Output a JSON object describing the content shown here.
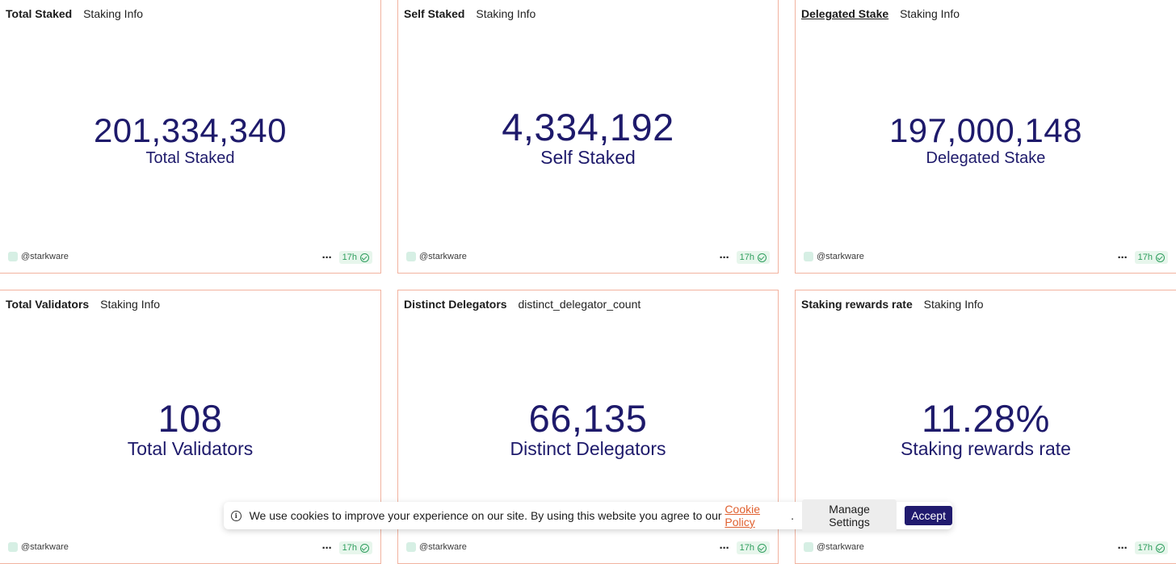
{
  "cards": [
    {
      "title": "Total Staked",
      "subtitle": "Staking Info",
      "value": "201,334,340",
      "label": "Total Staked",
      "owner": "@starkware",
      "more": "⋯",
      "age": "17h"
    },
    {
      "title": "Self Staked",
      "subtitle": "Staking Info",
      "value": "4,334,192",
      "label": "Self Staked",
      "owner": "@starkware",
      "more": "⋯",
      "age": "17h"
    },
    {
      "title": "Delegated Stake",
      "subtitle": "Staking Info",
      "value": "197,000,148",
      "label": "Delegated Stake",
      "owner": "@starkware",
      "more": "⋯",
      "age": "17h"
    },
    {
      "title": "Total Validators",
      "subtitle": "Staking Info",
      "value": "108",
      "label": "Total Validators",
      "owner": "@starkware",
      "more": "⋯",
      "age": "17h"
    },
    {
      "title": "Distinct Delegators",
      "subtitle": "distinct_delegator_count",
      "value": "66,135",
      "label": "Distinct Delegators",
      "owner": "@starkware",
      "more": "⋯",
      "age": "17h"
    },
    {
      "title": "Staking rewards rate",
      "subtitle": "Staking Info",
      "value": "11.28%",
      "label": "Staking rewards rate",
      "owner": "@starkware",
      "more": "⋯",
      "age": "17h"
    }
  ],
  "cookie_banner": {
    "info_glyph": "i",
    "text": "We use cookies to improve your experience on our site. By using this website you agree to our ",
    "link": "Cookie Policy",
    "period": ".",
    "manage_label": "Manage Settings",
    "accept_label": "Accept"
  },
  "colors": {
    "card_border": "#f2b3a0",
    "counter_text": "#1e1a6b",
    "badge_green": "#2f9e5e",
    "accept_bg": "#201a6e",
    "link": "#e0602f"
  }
}
